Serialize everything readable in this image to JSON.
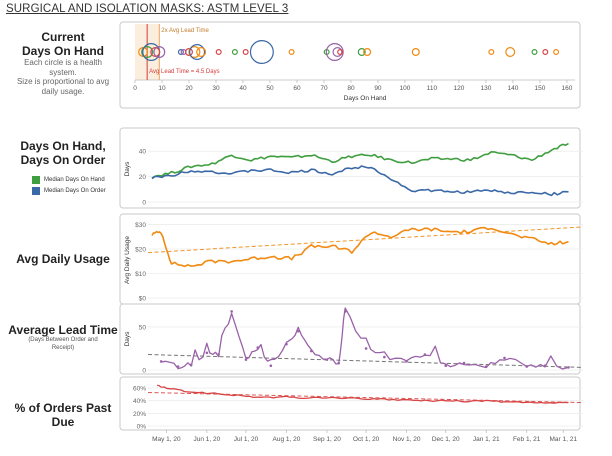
{
  "title": "SURGICAL AND ISOLATION MASKS: ASTM LEVEL 3",
  "labels": {
    "dod_title_1": "Current",
    "dod_title_2": "Days On Hand",
    "dod_note_1": "Each circle is a health",
    "dod_note_2": "system.",
    "dod_note_3": "Size is proportional to avg",
    "dod_note_4": "daily usage.",
    "panel2_title_1": "Days On Hand,",
    "panel2_title_2": "Days On Order",
    "panel3_title": "Avg Daily Usage",
    "panel4_title": "Average Lead Time",
    "panel4_note_1": "(Days Between Order and",
    "panel4_note_2": "Receipt)",
    "panel5_title_1": "% of Orders Past",
    "panel5_title_2": "Due"
  },
  "legend": {
    "on_hand": "Median Days On Hand",
    "on_order": "Median Days On Order"
  },
  "colors": {
    "on_hand": "#3f9e3f",
    "on_order": "#3b68a6",
    "usage": "#f08a12",
    "lead_time": "#9a62a8",
    "past_due": "#d84545",
    "lead_ref": "#d83a3a",
    "lead_ref2": "#e8a35a",
    "trend": "#666666"
  },
  "chart_data": [
    {
      "type": "scatter",
      "name": "current_days_on_hand",
      "xlabel": "Days On Hand",
      "xlim": [
        0,
        163
      ],
      "xticks": [
        0,
        10,
        20,
        30,
        40,
        50,
        60,
        70,
        80,
        90,
        100,
        110,
        120,
        130,
        140,
        150,
        160
      ],
      "annotations": [
        {
          "text": "Avg Lead Time = 4.5 Days",
          "x": 4.5
        },
        {
          "text": "2x Avg Lead Time",
          "x": 9.0
        }
      ],
      "points": [
        {
          "x": 3,
          "size": 3,
          "color": "#f08a12"
        },
        {
          "x": 4.5,
          "size": 4,
          "color": "#3f9e3f"
        },
        {
          "x": 6,
          "size": 7,
          "color": "#3b68a6"
        },
        {
          "x": 7.5,
          "size": 3,
          "color": "#d84545"
        },
        {
          "x": 9,
          "size": 4,
          "color": "#9a62a8"
        },
        {
          "x": 17,
          "size": 1,
          "color": "#3b68a6"
        },
        {
          "x": 18,
          "size": 1,
          "color": "#9a62a8"
        },
        {
          "x": 20,
          "size": 2,
          "color": "#d84545"
        },
        {
          "x": 22,
          "size": 4,
          "color": "#f08a12"
        },
        {
          "x": 23,
          "size": 6,
          "color": "#3b68a6"
        },
        {
          "x": 24.5,
          "size": 3,
          "color": "#f08a12"
        },
        {
          "x": 31,
          "size": 1,
          "color": "#d84545"
        },
        {
          "x": 37,
          "size": 1,
          "color": "#3f9e3f"
        },
        {
          "x": 41,
          "size": 1,
          "color": "#d84545"
        },
        {
          "x": 47,
          "size": 10,
          "color": "#3b68a6"
        },
        {
          "x": 58,
          "size": 1,
          "color": "#f08a12"
        },
        {
          "x": 71,
          "size": 1,
          "color": "#3f9e3f"
        },
        {
          "x": 74,
          "size": 7,
          "color": "#9a62a8"
        },
        {
          "x": 75,
          "size": 3,
          "color": "#9a62a8"
        },
        {
          "x": 76,
          "size": 1,
          "color": "#d84545"
        },
        {
          "x": 84,
          "size": 2,
          "color": "#3f9e3f"
        },
        {
          "x": 86,
          "size": 2,
          "color": "#f08a12"
        },
        {
          "x": 104,
          "size": 2,
          "color": "#f08a12"
        },
        {
          "x": 132,
          "size": 1,
          "color": "#f08a12"
        },
        {
          "x": 139,
          "size": 3,
          "color": "#f08a12"
        },
        {
          "x": 148,
          "size": 1,
          "color": "#3f9e3f"
        },
        {
          "x": 152,
          "size": 1,
          "color": "#d84545"
        },
        {
          "x": 156,
          "size": 1,
          "color": "#f08a12"
        }
      ]
    },
    {
      "type": "line",
      "name": "days_on_hand_on_order",
      "ylabel": "Days",
      "ylim": [
        0,
        52
      ],
      "yticks": [
        0,
        20,
        40
      ],
      "x_start": "2020-04-20",
      "x_end": "2021-03-10",
      "series": [
        {
          "name": "Median Days On Hand",
          "color": "#3f9e3f",
          "x": [
            "2020-04-20",
            "2020-05-05",
            "2020-05-20",
            "2020-06-05",
            "2020-06-20",
            "2020-07-05",
            "2020-07-20",
            "2020-08-05",
            "2020-08-20",
            "2020-09-05",
            "2020-09-20",
            "2020-10-05",
            "2020-10-20",
            "2020-11-05",
            "2020-11-20",
            "2020-12-05",
            "2020-12-20",
            "2021-01-05",
            "2021-01-20",
            "2021-02-05",
            "2021-02-20",
            "2021-03-05"
          ],
          "values": [
            20,
            23,
            28,
            30,
            37,
            33,
            36,
            35,
            37,
            32,
            36,
            37,
            33,
            31,
            34,
            34,
            33,
            39,
            37,
            33,
            41,
            46
          ]
        },
        {
          "name": "Median Days On Order",
          "color": "#3b68a6",
          "x": [
            "2020-04-20",
            "2020-05-05",
            "2020-05-20",
            "2020-06-05",
            "2020-06-20",
            "2020-07-05",
            "2020-07-20",
            "2020-08-05",
            "2020-08-20",
            "2020-09-05",
            "2020-09-20",
            "2020-10-05",
            "2020-10-20",
            "2020-11-05",
            "2020-11-20",
            "2020-12-05",
            "2020-12-20",
            "2021-01-05",
            "2021-01-20",
            "2021-02-05",
            "2021-02-20",
            "2021-03-05"
          ],
          "values": [
            19,
            21,
            25,
            24,
            22,
            25,
            25,
            23,
            25,
            22,
            27,
            28,
            18,
            9,
            9,
            8,
            8,
            9,
            7,
            8,
            6,
            8
          ]
        }
      ]
    },
    {
      "type": "line",
      "name": "avg_daily_usage",
      "ylabel": "Avg Daily Usage",
      "ylim": [
        0,
        31
      ],
      "yticks": [
        0,
        10,
        20,
        30
      ],
      "ytick_labels": [
        "$0",
        "$10",
        "$20",
        "$30"
      ],
      "series": [
        {
          "name": "Avg Daily Usage",
          "color": "#f08a12",
          "x": [
            "2020-04-20",
            "2020-04-27",
            "2020-05-05",
            "2020-05-20",
            "2020-06-05",
            "2020-06-20",
            "2020-07-05",
            "2020-07-20",
            "2020-08-05",
            "2020-08-20",
            "2020-09-05",
            "2020-09-20",
            "2020-10-05",
            "2020-10-20",
            "2020-11-05",
            "2020-11-20",
            "2020-12-05",
            "2020-12-20",
            "2021-01-05",
            "2021-01-20",
            "2021-02-05",
            "2021-02-20",
            "2021-03-05"
          ],
          "values": [
            26,
            27,
            14,
            13,
            15,
            15,
            16,
            17,
            16,
            21,
            21,
            19,
            27,
            25,
            28,
            28,
            27,
            27,
            29,
            26,
            24,
            22,
            23
          ]
        }
      ],
      "trend": {
        "start": 18.5,
        "end": 29
      }
    },
    {
      "type": "line",
      "name": "average_lead_time",
      "ylabel": "Days",
      "ylim": [
        0,
        72
      ],
      "yticks": [
        0,
        50
      ],
      "series": [
        {
          "name": "Average Lead Time",
          "color": "#9a62a8",
          "x": [
            "2020-04-27",
            "2020-05-10",
            "2020-05-20",
            "2020-06-01",
            "2020-06-10",
            "2020-06-20",
            "2020-07-01",
            "2020-07-10",
            "2020-07-20",
            "2020-08-01",
            "2020-08-10",
            "2020-08-20",
            "2020-09-01",
            "2020-09-10",
            "2020-09-15",
            "2020-10-01",
            "2020-10-15",
            "2020-11-01",
            "2020-11-15",
            "2020-12-01",
            "2020-12-15",
            "2021-01-01",
            "2021-01-15",
            "2021-02-01",
            "2021-02-15",
            "2021-03-05"
          ],
          "values": [
            10,
            4,
            6,
            20,
            18,
            68,
            12,
            26,
            5,
            30,
            45,
            22,
            12,
            8,
            68,
            25,
            15,
            10,
            18,
            5,
            8,
            4,
            14,
            4,
            5,
            3
          ]
        }
      ],
      "trend": {
        "start": 18,
        "end": 3
      }
    },
    {
      "type": "line",
      "name": "pct_orders_past_due",
      "ylim": [
        0,
        68
      ],
      "yticks": [
        0,
        20,
        40,
        60
      ],
      "ytick_labels": [
        "0%",
        "20%",
        "40%",
        "60%"
      ],
      "series": [
        {
          "name": "% of Orders Past Due",
          "color": "#d84545",
          "x": [
            "2020-04-24",
            "2020-05-01",
            "2020-05-15",
            "2020-06-01",
            "2020-06-15",
            "2020-07-01",
            "2020-07-15",
            "2020-08-01",
            "2020-08-15",
            "2020-09-01",
            "2020-09-15",
            "2020-10-01",
            "2020-10-15",
            "2020-11-01",
            "2020-11-15",
            "2020-12-01",
            "2020-12-15",
            "2021-01-01",
            "2021-01-15",
            "2021-02-01",
            "2021-02-15",
            "2021-03-05"
          ],
          "values": [
            64,
            60,
            55,
            52,
            50,
            47,
            45,
            46,
            44,
            45,
            44,
            43,
            42,
            41,
            40,
            40,
            39,
            40,
            38,
            37,
            36,
            37
          ]
        }
      ],
      "trend": {
        "start": 53,
        "end": 37
      }
    }
  ],
  "x_axis": {
    "ticks": [
      "2020-05-01",
      "2020-06-01",
      "2020-07-01",
      "2020-08-01",
      "2020-09-01",
      "2020-10-01",
      "2020-11-01",
      "2020-12-01",
      "2021-01-01",
      "2021-02-01",
      "2021-03-01"
    ],
    "labels": [
      "May 1, 20",
      "Jun 1, 20",
      "Jul 1, 20",
      "Aug 1, 20",
      "Sep 1, 20",
      "Oct 1, 20",
      "Nov 1, 20",
      "Dec 1, 20",
      "Jan 1, 21",
      "Feb 1, 21",
      "Mar 1, 21"
    ]
  }
}
